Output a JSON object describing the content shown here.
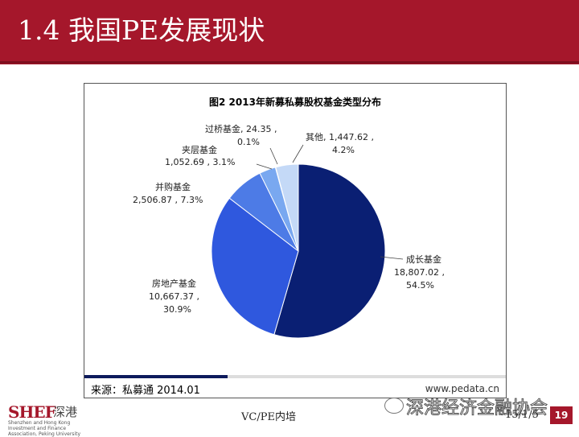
{
  "slide": {
    "title": "1.4 我国PE发展现状",
    "bottom_center": "VC/PE内培",
    "date": "15/1/5",
    "page_number": "19",
    "logo_text": "SHEF",
    "logo_cn": "深港",
    "logo_sub": "Shenzhen and Hong Kong Investment and Finance Association, Peking University",
    "watermark_left": "",
    "wechat_watermark": "深港经济金融协会",
    "colors": {
      "header": "#a5172b",
      "footer_accent": "#0d1a5c"
    }
  },
  "chart_data": {
    "type": "pie",
    "title": "图2 2013年新募私募股权基金类型分布",
    "source": "来源：私募通  2014.01",
    "site": "www.pedata.cn",
    "unit": "",
    "slices": [
      {
        "name": "成长基金",
        "value": 18807.02,
        "value_label": "18,807.02 ,",
        "percent": "54.5%",
        "color": "#0a1f73"
      },
      {
        "name": "房地产基金",
        "value": 10667.37,
        "value_label": "10,667.37 ,",
        "percent": "30.9%",
        "color": "#2f58de"
      },
      {
        "name": "并购基金",
        "value": 2506.87,
        "value_label": "2,506.87 , 7.3%",
        "percent": "",
        "color": "#4d7be6"
      },
      {
        "name": "夹层基金",
        "value": 1052.69,
        "value_label": "1,052.69 , 3.1%",
        "percent": "",
        "color": "#79a8f0"
      },
      {
        "name": "过桥基金",
        "value": 24.35,
        "value_label": "过桥基金, 24.35 ,",
        "percent": "0.1%",
        "color": "#9fc3f5"
      },
      {
        "name": "其他",
        "value": 1447.62,
        "value_label": "其他, 1,447.62 ,",
        "percent": "4.2%",
        "color": "#c4d9f7"
      }
    ]
  }
}
